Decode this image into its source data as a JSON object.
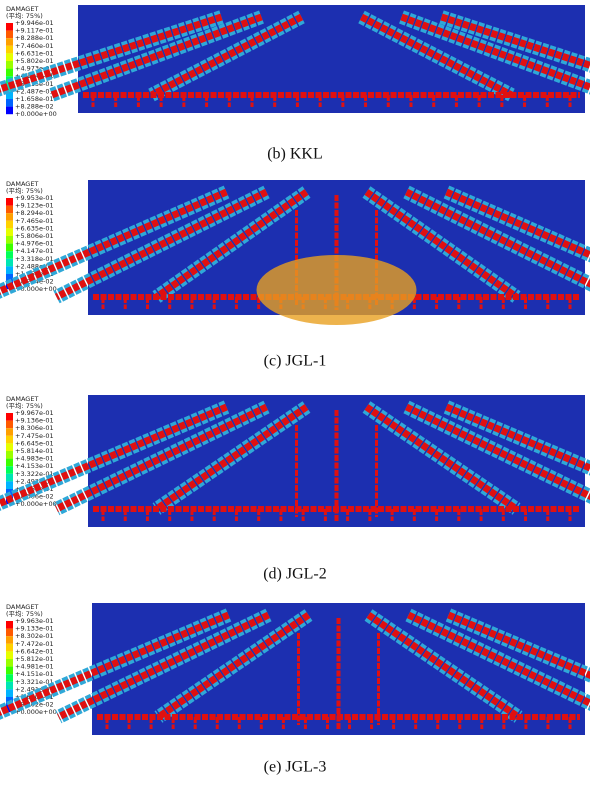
{
  "panels": [
    {
      "legend_title": "DAMAGET",
      "legend_subtitle": "(平均: 75%)",
      "legend_values": [
        "+9.946e-01",
        "+9.117e-01",
        "+8.288e-01",
        "+7.460e-01",
        "+6.631e-01",
        "+5.802e-01",
        "+4.973e-01",
        "+4.144e-01",
        "+3.315e-01",
        "+2.487e-01",
        "+1.658e-01",
        "+8.288e-02",
        "+0.000e+00"
      ],
      "caption": "(b) KKL"
    },
    {
      "legend_title": "DAMAGET",
      "legend_subtitle": "(平均: 75%)",
      "legend_values": [
        "+9.953e-01",
        "+9.123e-01",
        "+8.294e-01",
        "+7.465e-01",
        "+6.635e-01",
        "+5.806e-01",
        "+4.976e-01",
        "+4.147e-01",
        "+3.318e-01",
        "+2.488e-01",
        "+1.659e-01",
        "+8.294e-02",
        "+0.000e+00"
      ],
      "caption": "(c) JGL-1"
    },
    {
      "legend_title": "DAMAGET",
      "legend_subtitle": "(平均: 75%)",
      "legend_values": [
        "+9.967e-01",
        "+9.136e-01",
        "+8.306e-01",
        "+7.475e-01",
        "+6.645e-01",
        "+5.814e-01",
        "+4.983e-01",
        "+4.153e-01",
        "+3.322e-01",
        "+2.492e-01",
        "+1.661e-01",
        "+8.306e-02",
        "+0.000e+00"
      ],
      "caption": "(d) JGL-2"
    },
    {
      "legend_title": "DAMAGET",
      "legend_subtitle": "(平均: 75%)",
      "legend_values": [
        "+9.963e-01",
        "+9.133e-01",
        "+8.302e-01",
        "+7.472e-01",
        "+6.642e-01",
        "+5.812e-01",
        "+4.981e-01",
        "+4.151e-01",
        "+3.321e-01",
        "+2.491e-01",
        "+1.660e-01",
        "+8.302e-02",
        "+0.000e+00"
      ],
      "caption": "(e) JGL-3"
    }
  ]
}
